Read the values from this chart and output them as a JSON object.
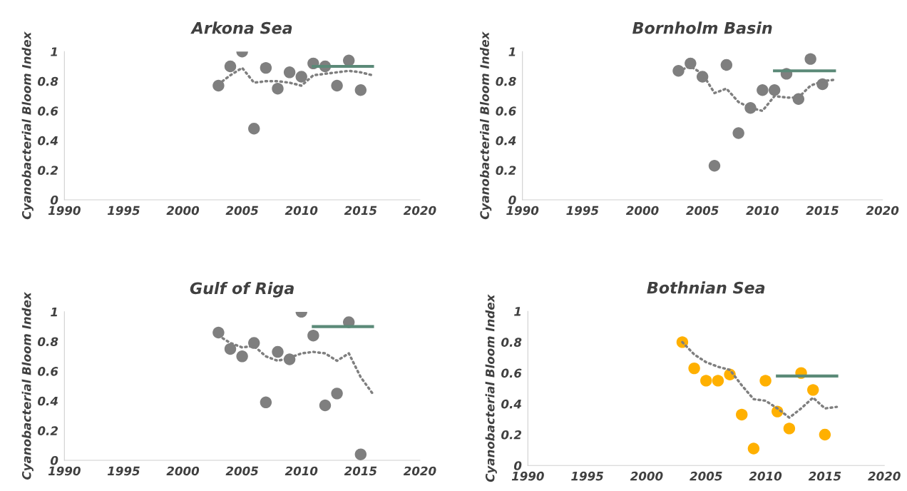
{
  "chart_data": [
    {
      "type": "scatter",
      "title": "Arkona Sea",
      "ylabel": "Cyanobacterial Bloom Index",
      "xlim": [
        1990,
        2020
      ],
      "xticks": [
        1990,
        1995,
        2000,
        2005,
        2010,
        2015,
        2020
      ],
      "ylim": [
        0,
        1
      ],
      "yticks": [
        0,
        0.2,
        0.4,
        0.6,
        0.8,
        1
      ],
      "grid": false,
      "legend": false,
      "series": [
        {
          "type": "scatter",
          "marker": "circle",
          "color": "#7f7f7f",
          "x": [
            2003,
            2004,
            2005,
            2006,
            2007,
            2008,
            2009,
            2010,
            2011,
            2012,
            2013,
            2014,
            2015
          ],
          "values": [
            0.77,
            0.9,
            1.0,
            0.48,
            0.89,
            0.75,
            0.86,
            0.83,
            0.92,
            0.9,
            0.77,
            0.94,
            0.74
          ]
        },
        {
          "type": "line",
          "line_style": "dotted",
          "color": "#7f7f7f",
          "x": [
            2003,
            2004,
            2005,
            2006,
            2007,
            2008,
            2009,
            2010,
            2011,
            2012,
            2013,
            2014,
            2015,
            2016
          ],
          "values": [
            0.78,
            0.84,
            0.89,
            0.79,
            0.8,
            0.8,
            0.79,
            0.77,
            0.84,
            0.85,
            0.86,
            0.87,
            0.86,
            0.84
          ]
        },
        {
          "type": "line",
          "line_style": "solid",
          "color": "#5b8a78",
          "x": [
            2011,
            2016
          ],
          "values": [
            0.9,
            0.9
          ]
        }
      ]
    },
    {
      "type": "scatter",
      "title": "Bornholm Basin",
      "ylabel": "Cyanobacterial Bloom Index",
      "xlim": [
        1990,
        2020
      ],
      "xticks": [
        1990,
        1995,
        2000,
        2005,
        2010,
        2015,
        2020
      ],
      "ylim": [
        0,
        1
      ],
      "yticks": [
        0,
        0.2,
        0.4,
        0.6,
        0.8,
        1
      ],
      "grid": false,
      "legend": false,
      "series": [
        {
          "type": "scatter",
          "marker": "circle",
          "color": "#7f7f7f",
          "x": [
            2003,
            2004,
            2005,
            2006,
            2007,
            2008,
            2009,
            2010,
            2011,
            2012,
            2013,
            2014,
            2015
          ],
          "values": [
            0.87,
            0.92,
            0.83,
            0.23,
            0.91,
            0.45,
            0.62,
            0.74,
            0.74,
            0.85,
            0.68,
            0.95,
            0.78
          ]
        },
        {
          "type": "line",
          "line_style": "dotted",
          "color": "#7f7f7f",
          "x": [
            2003,
            2004,
            2005,
            2006,
            2007,
            2008,
            2009,
            2010,
            2011,
            2012,
            2013,
            2014,
            2015,
            2016
          ],
          "values": [
            0.87,
            0.9,
            0.85,
            0.72,
            0.75,
            0.66,
            0.62,
            0.6,
            0.7,
            0.69,
            0.69,
            0.77,
            0.8,
            0.81
          ]
        },
        {
          "type": "line",
          "line_style": "solid",
          "color": "#5b8a78",
          "x": [
            2011,
            2016
          ],
          "values": [
            0.87,
            0.87
          ]
        }
      ]
    },
    {
      "type": "scatter",
      "title": "Gulf of Riga",
      "ylabel": "Cyanobacterial Bloom Index",
      "xlim": [
        1990,
        2020
      ],
      "xticks": [
        1990,
        1995,
        2000,
        2005,
        2010,
        2015,
        2020
      ],
      "ylim": [
        0,
        1
      ],
      "yticks": [
        0,
        0.2,
        0.4,
        0.6,
        0.8,
        1
      ],
      "grid": false,
      "legend": false,
      "series": [
        {
          "type": "scatter",
          "marker": "circle",
          "color": "#7f7f7f",
          "x": [
            2003,
            2004,
            2005,
            2006,
            2007,
            2008,
            2009,
            2010,
            2011,
            2012,
            2013,
            2014,
            2015
          ],
          "values": [
            0.86,
            0.75,
            0.7,
            0.79,
            0.39,
            0.73,
            0.68,
            1.0,
            0.84,
            0.37,
            0.45,
            0.93,
            0.04
          ]
        },
        {
          "type": "line",
          "line_style": "dotted",
          "color": "#7f7f7f",
          "x": [
            2003,
            2004,
            2005,
            2006,
            2007,
            2008,
            2009,
            2010,
            2011,
            2012,
            2013,
            2014,
            2015,
            2016
          ],
          "values": [
            0.84,
            0.79,
            0.76,
            0.77,
            0.7,
            0.67,
            0.69,
            0.72,
            0.73,
            0.72,
            0.67,
            0.72,
            0.56,
            0.45
          ]
        },
        {
          "type": "line",
          "line_style": "solid",
          "color": "#5b8a78",
          "x": [
            2011,
            2016
          ],
          "values": [
            0.9,
            0.9
          ]
        }
      ]
    },
    {
      "type": "scatter",
      "title": "Bothnian Sea",
      "ylabel": "Cyanobacterial Bloom Index",
      "xlim": [
        1990,
        2020
      ],
      "xticks": [
        1990,
        1995,
        2000,
        2005,
        2010,
        2015,
        2020
      ],
      "ylim": [
        0,
        1
      ],
      "yticks": [
        0,
        0.2,
        0.4,
        0.6,
        0.8,
        1
      ],
      "grid": false,
      "legend": false,
      "series": [
        {
          "type": "scatter",
          "marker": "circle",
          "color": "#ffb000",
          "x": [
            2003,
            2004,
            2005,
            2006,
            2007,
            2008,
            2009,
            2010,
            2011,
            2012,
            2013,
            2014,
            2015
          ],
          "values": [
            0.8,
            0.63,
            0.55,
            0.55,
            0.59,
            0.33,
            0.11,
            0.55,
            0.35,
            0.24,
            0.6,
            0.49,
            0.2
          ]
        },
        {
          "type": "line",
          "line_style": "dotted",
          "color": "#7f7f7f",
          "x": [
            2003,
            2004,
            2005,
            2006,
            2007,
            2008,
            2009,
            2010,
            2011,
            2012,
            2013,
            2014,
            2015,
            2016
          ],
          "values": [
            0.8,
            0.72,
            0.67,
            0.64,
            0.62,
            0.52,
            0.43,
            0.42,
            0.37,
            0.31,
            0.37,
            0.44,
            0.37,
            0.38
          ]
        },
        {
          "type": "line",
          "line_style": "solid",
          "color": "#5b8a78",
          "x": [
            2011,
            2016
          ],
          "values": [
            0.58,
            0.58
          ]
        }
      ]
    }
  ]
}
